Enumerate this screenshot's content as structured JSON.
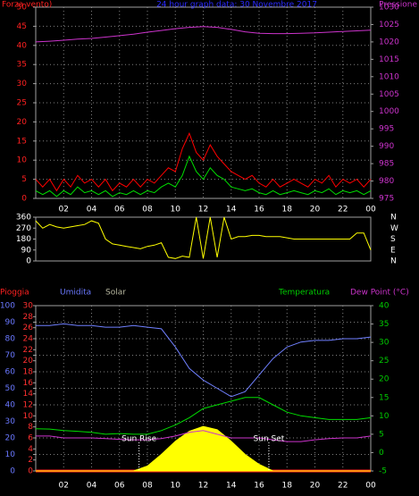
{
  "chart_data": [
    {
      "type": "line",
      "title": "24 hour graph data: 30 Novembre 2017",
      "title_color": "#2a2aff",
      "ylabel": "Forza vento)",
      "y2label": "Pressione",
      "ycolor": "#ff2020",
      "y2color": "#cc33cc",
      "x": [
        0,
        1,
        2,
        3,
        4,
        5,
        6,
        7,
        8,
        9,
        10,
        11,
        12,
        13,
        14,
        15,
        16,
        17,
        18,
        19,
        20,
        21,
        22,
        23,
        24
      ],
      "xlim": [
        0,
        24
      ],
      "xticks": [
        {
          "value": 2,
          "label": "02"
        },
        {
          "value": 4,
          "label": "04"
        },
        {
          "value": 6,
          "label": "06"
        },
        {
          "value": 8,
          "label": "08"
        },
        10,
        12,
        14,
        16,
        18,
        20,
        22,
        {
          "value": 24,
          "label": "00"
        }
      ],
      "ylim": [
        0,
        50
      ],
      "yticks": [
        0,
        5,
        10,
        15,
        20,
        25,
        30,
        35,
        40,
        45,
        50
      ],
      "y2lim": [
        975,
        1030
      ],
      "y2ticks": [
        975,
        980,
        985,
        990,
        995,
        1000,
        1005,
        1010,
        1015,
        1020,
        1025,
        1030
      ],
      "grid": true,
      "series": [
        {
          "color": "#ff0000",
          "axis": "y",
          "x": [
            0,
            0.5,
            1,
            1.5,
            2,
            2.5,
            3,
            3.5,
            4,
            4.5,
            5,
            5.5,
            6,
            6.5,
            7,
            7.5,
            8,
            8.5,
            9,
            9.5,
            10,
            10.5,
            11,
            11.5,
            12,
            12.5,
            13,
            13.5,
            14,
            14.5,
            15,
            15.5,
            16,
            16.5,
            17,
            17.5,
            18,
            18.5,
            19,
            19.5,
            20,
            20.5,
            21,
            21.5,
            22,
            22.5,
            23,
            23.5,
            24
          ],
          "values": [
            5,
            3,
            5,
            2,
            5,
            3,
            6,
            4,
            5,
            3,
            5,
            2,
            4,
            3,
            5,
            3,
            5,
            4,
            6,
            8,
            7,
            13,
            17,
            12,
            10,
            14,
            11,
            9,
            7,
            6,
            5,
            6,
            4,
            3,
            5,
            3,
            4,
            5,
            4,
            3,
            5,
            4,
            6,
            3,
            5,
            4,
            5,
            3,
            5
          ]
        },
        {
          "color": "#00e000",
          "axis": "y",
          "x": [
            0,
            0.5,
            1,
            1.5,
            2,
            2.5,
            3,
            3.5,
            4,
            4.5,
            5,
            5.5,
            6,
            6.5,
            7,
            7.5,
            8,
            8.5,
            9,
            9.5,
            10,
            10.5,
            11,
            11.5,
            12,
            12.5,
            13,
            13.5,
            14,
            14.5,
            15,
            15.5,
            16,
            16.5,
            17,
            17.5,
            18,
            18.5,
            19,
            19.5,
            20,
            20.5,
            21,
            21.5,
            22,
            22.5,
            23,
            23.5,
            24
          ],
          "values": [
            2,
            1,
            2,
            0.5,
            2,
            1,
            3,
            1.5,
            2,
            1,
            2,
            0.5,
            1.5,
            1,
            2,
            1,
            2,
            1.5,
            3,
            4,
            3,
            6,
            11,
            7,
            5,
            8,
            6,
            5,
            3,
            2.5,
            2,
            2.5,
            1.5,
            1,
            2,
            1,
            1.5,
            2,
            1.5,
            1,
            2,
            1.5,
            2.5,
            1,
            2,
            1.5,
            2,
            1,
            2
          ]
        },
        {
          "color": "#cc33cc",
          "axis": "y2",
          "values": [
            1020,
            1020.2,
            1020.5,
            1020.8,
            1021,
            1021.4,
            1021.8,
            1022.2,
            1022.8,
            1023.3,
            1023.8,
            1024.2,
            1024.4,
            1024.2,
            1023.6,
            1022.9,
            1022.5,
            1022.4,
            1022.4,
            1022.5,
            1022.6,
            1022.8,
            1023,
            1023.2,
            1023.4
          ]
        }
      ]
    },
    {
      "type": "line",
      "ycolor": "#ffffff",
      "x": [
        0,
        0.5,
        1,
        1.5,
        2,
        2.5,
        3,
        3.5,
        4,
        4.5,
        5,
        5.5,
        6,
        6.5,
        7,
        7.5,
        8,
        8.5,
        9,
        9.5,
        10,
        10.5,
        11,
        11.5,
        12,
        12.5,
        13,
        13.5,
        14,
        14.5,
        15,
        15.5,
        16,
        16.5,
        17,
        17.5,
        18,
        18.5,
        19,
        19.5,
        20,
        20.5,
        21,
        21.5,
        22,
        22.5,
        23,
        23.5,
        24
      ],
      "xlim": [
        0,
        24
      ],
      "ylim": [
        0,
        360
      ],
      "yticks": [
        0,
        90,
        180,
        270,
        360
      ],
      "compass": [
        "N",
        "W",
        "S",
        "E",
        "N"
      ],
      "series": [
        {
          "color": "#ffff00",
          "axis": "y",
          "values": [
            330,
            270,
            300,
            280,
            270,
            280,
            290,
            300,
            330,
            310,
            180,
            140,
            130,
            120,
            110,
            100,
            120,
            130,
            150,
            30,
            20,
            40,
            30,
            360,
            20,
            360,
            30,
            360,
            180,
            200,
            200,
            210,
            210,
            200,
            200,
            200,
            190,
            180,
            180,
            180,
            180,
            180,
            180,
            180,
            180,
            180,
            230,
            230,
            90
          ]
        }
      ]
    },
    {
      "type": "line",
      "ycolor": "#6a78ff",
      "y3color": "#ff3030",
      "y2color": "#00cc00",
      "x": [
        0,
        1,
        2,
        3,
        4,
        5,
        6,
        7,
        8,
        9,
        10,
        11,
        12,
        13,
        14,
        15,
        16,
        17,
        18,
        19,
        20,
        21,
        22,
        23,
        24
      ],
      "xlim": [
        0,
        24
      ],
      "xticks": [
        {
          "value": 2,
          "label": "02"
        },
        {
          "value": 4,
          "label": "04"
        },
        {
          "value": 6,
          "label": "06"
        },
        {
          "value": 8,
          "label": "08"
        },
        10,
        12,
        14,
        16,
        18,
        20,
        22,
        {
          "value": 24,
          "label": "00"
        }
      ],
      "ylim": [
        0,
        100
      ],
      "yticks": [
        0,
        10,
        20,
        30,
        40,
        50,
        60,
        70,
        80,
        90,
        100
      ],
      "y3lim": [
        0,
        30
      ],
      "y3ticks": [
        0,
        2,
        4,
        6,
        8,
        10,
        12,
        14,
        16,
        18,
        20,
        22,
        24,
        26,
        28,
        30
      ],
      "y2lim": [
        -5,
        40
      ],
      "y2ticks": [
        -5,
        0,
        5,
        10,
        15,
        20,
        25,
        30,
        35,
        40
      ],
      "grid": true,
      "annotations": [
        {
          "text": "Sun Rise",
          "x": 7.4
        },
        {
          "text": "Sun Set",
          "x": 16.7
        }
      ],
      "series": [
        {
          "name": "Pioggia",
          "color": "#ff2020",
          "legend_color": "#ff2020",
          "axis": "y3",
          "values": [
            0,
            0,
            0,
            0,
            0,
            0,
            0,
            0,
            0,
            0,
            0,
            0,
            0,
            0,
            0,
            0,
            0,
            0,
            0,
            0,
            0,
            0,
            0,
            0,
            0
          ]
        },
        {
          "name": "Umidita",
          "color": "#7080ff",
          "legend_color": "#6a78ff",
          "axis": "y",
          "values": [
            88,
            88,
            89,
            88,
            88,
            87,
            87,
            88,
            87,
            86,
            75,
            62,
            55,
            50,
            45,
            48,
            58,
            68,
            75,
            78,
            79,
            79,
            80,
            80,
            81
          ]
        },
        {
          "name": "Solar",
          "color": "#ffff00",
          "legend_color": "#b8b8a0",
          "axis": "y",
          "style": "area",
          "values": [
            0,
            0,
            0,
            0,
            0,
            0,
            0,
            0,
            3,
            10,
            18,
            24,
            27,
            25,
            18,
            10,
            4,
            0,
            0,
            0,
            0,
            0,
            0,
            0,
            0
          ]
        },
        {
          "name": "Temperatura",
          "color": "#00dd00",
          "legend_color": "#00cc00",
          "axis": "y2",
          "values": [
            6.5,
            6.4,
            6,
            5.8,
            5.5,
            5,
            5.2,
            5,
            5,
            6,
            7.5,
            9.5,
            12,
            13,
            14,
            15,
            15,
            13,
            11,
            10,
            9.5,
            9,
            9,
            9,
            9.5
          ]
        },
        {
          "name": "Dew Point (°C)",
          "color": "#cc33cc",
          "legend_color": "#cc33cc",
          "axis": "y2",
          "values": [
            4.5,
            4.5,
            4,
            4,
            4,
            3.8,
            3.6,
            3.5,
            3.5,
            3.8,
            4.5,
            5.5,
            6,
            5,
            4,
            4,
            4,
            3.5,
            3,
            3,
            3.5,
            3.8,
            4,
            4,
            4.5
          ]
        }
      ]
    }
  ]
}
